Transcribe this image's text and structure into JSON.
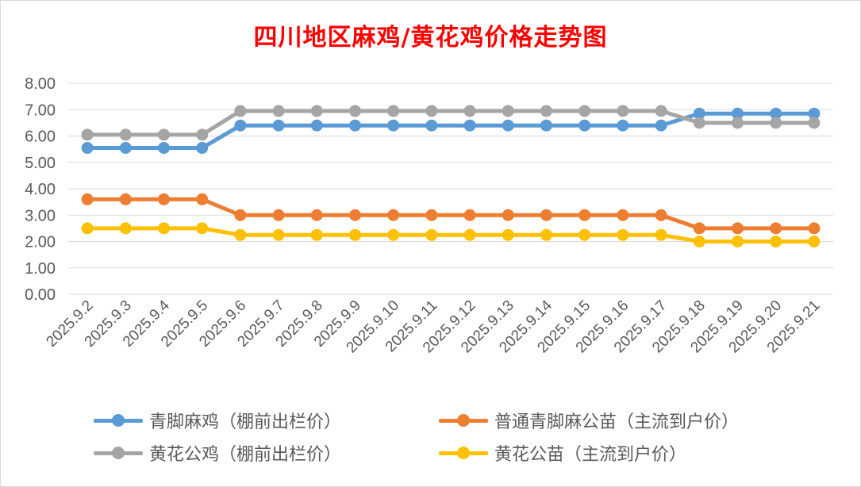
{
  "chart_data": {
    "type": "line",
    "title": "四川地区麻鸡/黄花鸡价格走势图",
    "categories": [
      "2025.9.2",
      "2025.9.3",
      "2025.9.4",
      "2025.9.5",
      "2025.9.6",
      "2025.9.7",
      "2025.9.8",
      "2025.9.9",
      "2025.9.10",
      "2025.9.11",
      "2025.9.12",
      "2025.9.13",
      "2025.9.14",
      "2025.9.15",
      "2025.9.16",
      "2025.9.17",
      "2025.9.18",
      "2025.9.19",
      "2025.9.20",
      "2025.9.21"
    ],
    "ylim": [
      0,
      8
    ],
    "yticks": [
      "0.00",
      "1.00",
      "2.00",
      "3.00",
      "4.00",
      "5.00",
      "6.00",
      "7.00",
      "8.00"
    ],
    "grid": true,
    "legend_position": "bottom",
    "series": [
      {
        "name": "青脚麻鸡（棚前出栏价）",
        "color": "#5b9bd5",
        "values": [
          5.55,
          5.55,
          5.55,
          5.55,
          6.4,
          6.4,
          6.4,
          6.4,
          6.4,
          6.4,
          6.4,
          6.4,
          6.4,
          6.4,
          6.4,
          6.4,
          6.85,
          6.85,
          6.85,
          6.85
        ]
      },
      {
        "name": "普通青脚麻公苗（主流到户价）",
        "color": "#ed7d31",
        "values": [
          3.6,
          3.6,
          3.6,
          3.6,
          3.0,
          3.0,
          3.0,
          3.0,
          3.0,
          3.0,
          3.0,
          3.0,
          3.0,
          3.0,
          3.0,
          3.0,
          2.5,
          2.5,
          2.5,
          2.5
        ]
      },
      {
        "name": "黄花公鸡（棚前出栏价）",
        "color": "#a5a5a5",
        "values": [
          6.05,
          6.05,
          6.05,
          6.05,
          6.95,
          6.95,
          6.95,
          6.95,
          6.95,
          6.95,
          6.95,
          6.95,
          6.95,
          6.95,
          6.95,
          6.95,
          6.5,
          6.5,
          6.5,
          6.5
        ]
      },
      {
        "name": "黄花公苗（主流到户价）",
        "color": "#ffc000",
        "values": [
          2.5,
          2.5,
          2.5,
          2.5,
          2.25,
          2.25,
          2.25,
          2.25,
          2.25,
          2.25,
          2.25,
          2.25,
          2.25,
          2.25,
          2.25,
          2.25,
          2.0,
          2.0,
          2.0,
          2.0
        ]
      }
    ]
  }
}
